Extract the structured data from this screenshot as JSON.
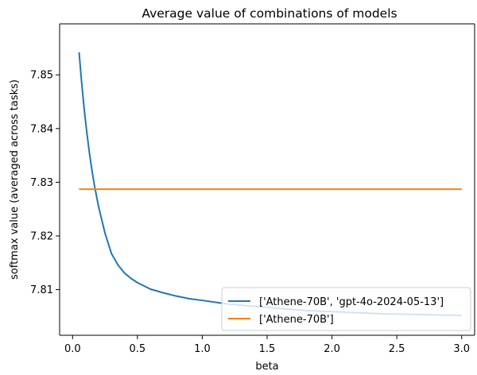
{
  "chart_data": {
    "type": "line",
    "title": "Average value of combinations of models",
    "xlabel": "beta",
    "ylabel": "softmax value (averaged across tasks)",
    "xlim": [
      -0.1,
      3.1
    ],
    "ylim": [
      7.8015,
      7.8595
    ],
    "xticks": [
      0.0,
      0.5,
      1.0,
      1.5,
      2.0,
      2.5,
      3.0
    ],
    "xtick_labels": [
      "0.0",
      "0.5",
      "1.0",
      "1.5",
      "2.0",
      "2.5",
      "3.0"
    ],
    "yticks": [
      7.81,
      7.82,
      7.83,
      7.84,
      7.85
    ],
    "ytick_labels": [
      "7.81",
      "7.82",
      "7.83",
      "7.84",
      "7.85"
    ],
    "grid": false,
    "legend_position": "lower-right",
    "series": [
      {
        "name": "['Athene-70B', 'gpt-4o-2024-05-13']",
        "color": "#1f77b4",
        "x": [
          0.05,
          0.07,
          0.09,
          0.11,
          0.13,
          0.15,
          0.17,
          0.2,
          0.25,
          0.3,
          0.35,
          0.4,
          0.45,
          0.5,
          0.6,
          0.7,
          0.8,
          0.9,
          1.0,
          1.2,
          1.4,
          1.6,
          1.8,
          2.0,
          2.2,
          2.4,
          2.6,
          2.8,
          3.0
        ],
        "y": [
          7.8542,
          7.8485,
          7.8435,
          7.8392,
          7.8354,
          7.8321,
          7.8292,
          7.8255,
          7.8205,
          7.8167,
          7.8146,
          7.8131,
          7.8121,
          7.8113,
          7.8101,
          7.8094,
          7.8088,
          7.8083,
          7.808,
          7.8073,
          7.8069,
          7.8065,
          7.8061,
          7.8059,
          7.8057,
          7.8055,
          7.8054,
          7.8053,
          7.8052
        ]
      },
      {
        "name": "['Athene-70B']",
        "color": "#ff7f0e",
        "x": [
          0.05,
          3.0
        ],
        "y": [
          7.8287,
          7.8287
        ]
      }
    ]
  }
}
